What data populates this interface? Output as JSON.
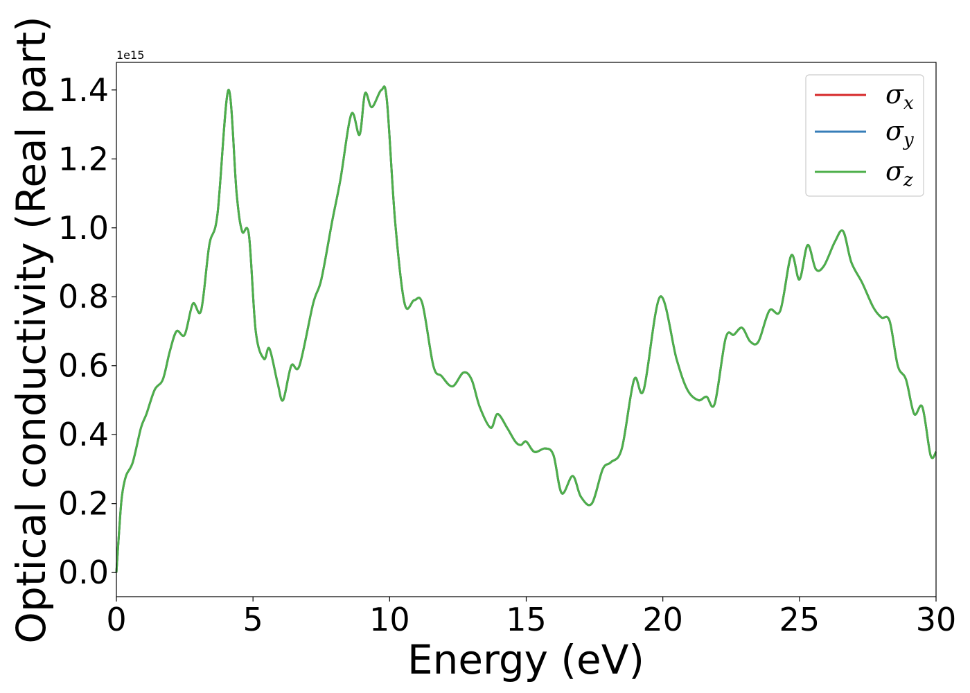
{
  "chart_data": {
    "type": "line",
    "title": "",
    "xlabel": "Energy (eV)",
    "ylabel": "Optical conductivity (Real part)",
    "y_offset_label": "1e15",
    "xlim": [
      0,
      30
    ],
    "ylim": [
      -0.07,
      1.48
    ],
    "xticks": [
      0,
      5,
      10,
      15,
      20,
      25,
      30
    ],
    "xtick_labels": [
      "0",
      "5",
      "10",
      "15",
      "20",
      "25",
      "30"
    ],
    "yticks": [
      0.0,
      0.2,
      0.4,
      0.6,
      0.8,
      1.0,
      1.2,
      1.4
    ],
    "ytick_labels": [
      "0.0",
      "0.2",
      "0.4",
      "0.6",
      "0.8",
      "1.0",
      "1.2",
      "1.4"
    ],
    "grid": false,
    "legend_position": "top-right",
    "x": [
      0,
      0.1,
      0.2,
      0.35,
      0.6,
      0.9,
      1.1,
      1.4,
      1.7,
      1.95,
      2.2,
      2.5,
      2.8,
      3.1,
      3.4,
      3.7,
      4.1,
      4.4,
      4.6,
      4.85,
      5.1,
      5.4,
      5.6,
      5.9,
      6.1,
      6.4,
      6.7,
      7.2,
      7.5,
      7.9,
      8.2,
      8.6,
      8.9,
      9.1,
      9.35,
      9.7,
      9.9,
      10.2,
      10.55,
      10.9,
      11.2,
      11.6,
      11.9,
      12.3,
      12.7,
      13.0,
      13.3,
      13.7,
      13.95,
      14.3,
      14.6,
      14.8,
      15.0,
      15.3,
      15.7,
      16.0,
      16.3,
      16.7,
      17.0,
      17.4,
      17.8,
      18.1,
      18.5,
      18.95,
      19.3,
      19.9,
      20.5,
      20.9,
      21.3,
      21.6,
      21.9,
      22.3,
      22.6,
      22.9,
      23.2,
      23.5,
      23.9,
      24.3,
      24.7,
      25.0,
      25.3,
      25.6,
      25.9,
      26.3,
      26.6,
      26.9,
      27.3,
      27.7,
      28.0,
      28.3,
      28.6,
      28.9,
      29.2,
      29.5,
      29.8,
      30.0
    ],
    "series": [
      {
        "name": "σx",
        "color": "#d62728",
        "values": [
          0.0,
          0.12,
          0.22,
          0.28,
          0.32,
          0.42,
          0.46,
          0.53,
          0.56,
          0.64,
          0.7,
          0.69,
          0.78,
          0.76,
          0.95,
          1.04,
          1.4,
          1.1,
          0.99,
          0.98,
          0.7,
          0.62,
          0.65,
          0.55,
          0.5,
          0.6,
          0.6,
          0.78,
          0.85,
          1.02,
          1.14,
          1.33,
          1.27,
          1.39,
          1.35,
          1.4,
          1.37,
          1.02,
          0.78,
          0.79,
          0.78,
          0.6,
          0.57,
          0.54,
          0.58,
          0.56,
          0.48,
          0.42,
          0.46,
          0.42,
          0.38,
          0.37,
          0.38,
          0.35,
          0.36,
          0.34,
          0.23,
          0.28,
          0.22,
          0.2,
          0.3,
          0.32,
          0.36,
          0.56,
          0.53,
          0.8,
          0.62,
          0.53,
          0.5,
          0.51,
          0.49,
          0.68,
          0.69,
          0.71,
          0.67,
          0.67,
          0.76,
          0.76,
          0.92,
          0.85,
          0.95,
          0.88,
          0.89,
          0.96,
          0.99,
          0.9,
          0.84,
          0.77,
          0.74,
          0.73,
          0.6,
          0.56,
          0.46,
          0.48,
          0.34,
          0.35
        ]
      },
      {
        "name": "σy",
        "color": "#377eb8",
        "values": [
          0.0,
          0.12,
          0.22,
          0.28,
          0.32,
          0.42,
          0.46,
          0.53,
          0.56,
          0.64,
          0.7,
          0.69,
          0.78,
          0.76,
          0.95,
          1.04,
          1.4,
          1.1,
          0.99,
          0.98,
          0.7,
          0.62,
          0.65,
          0.55,
          0.5,
          0.6,
          0.6,
          0.78,
          0.85,
          1.02,
          1.14,
          1.33,
          1.27,
          1.39,
          1.35,
          1.4,
          1.37,
          1.02,
          0.78,
          0.79,
          0.78,
          0.6,
          0.57,
          0.54,
          0.58,
          0.56,
          0.48,
          0.42,
          0.46,
          0.42,
          0.38,
          0.37,
          0.38,
          0.35,
          0.36,
          0.34,
          0.23,
          0.28,
          0.22,
          0.2,
          0.3,
          0.32,
          0.36,
          0.56,
          0.53,
          0.8,
          0.62,
          0.53,
          0.5,
          0.51,
          0.49,
          0.68,
          0.69,
          0.71,
          0.67,
          0.67,
          0.76,
          0.76,
          0.92,
          0.85,
          0.95,
          0.88,
          0.89,
          0.96,
          0.99,
          0.9,
          0.84,
          0.77,
          0.74,
          0.73,
          0.6,
          0.56,
          0.46,
          0.48,
          0.34,
          0.35
        ]
      },
      {
        "name": "σz",
        "color": "#4daf4a",
        "values": [
          0.0,
          0.12,
          0.22,
          0.28,
          0.32,
          0.42,
          0.46,
          0.53,
          0.56,
          0.64,
          0.7,
          0.69,
          0.78,
          0.76,
          0.95,
          1.04,
          1.4,
          1.1,
          0.99,
          0.98,
          0.7,
          0.62,
          0.65,
          0.55,
          0.5,
          0.6,
          0.6,
          0.78,
          0.85,
          1.02,
          1.14,
          1.33,
          1.27,
          1.39,
          1.35,
          1.4,
          1.37,
          1.02,
          0.78,
          0.79,
          0.78,
          0.6,
          0.57,
          0.54,
          0.58,
          0.56,
          0.48,
          0.42,
          0.46,
          0.42,
          0.38,
          0.37,
          0.38,
          0.35,
          0.36,
          0.34,
          0.23,
          0.28,
          0.22,
          0.2,
          0.3,
          0.32,
          0.36,
          0.56,
          0.53,
          0.8,
          0.62,
          0.53,
          0.5,
          0.51,
          0.49,
          0.68,
          0.69,
          0.71,
          0.67,
          0.67,
          0.76,
          0.76,
          0.92,
          0.85,
          0.95,
          0.88,
          0.89,
          0.96,
          0.99,
          0.9,
          0.84,
          0.77,
          0.74,
          0.73,
          0.6,
          0.56,
          0.46,
          0.48,
          0.34,
          0.35
        ]
      }
    ],
    "legend": [
      {
        "symbol": "σ",
        "subscript": "x",
        "color": "#d62728"
      },
      {
        "symbol": "σ",
        "subscript": "y",
        "color": "#377eb8"
      },
      {
        "symbol": "σ",
        "subscript": "z",
        "color": "#4daf4a"
      }
    ]
  }
}
